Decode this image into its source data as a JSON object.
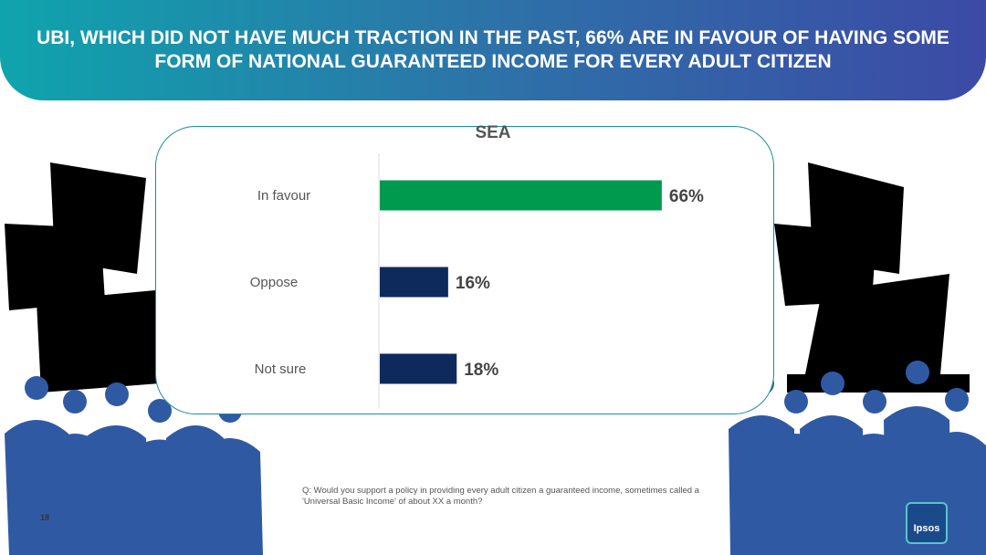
{
  "header": {
    "title": "UBI, WHICH DID NOT HAVE MUCH TRACTION IN THE PAST, 66% ARE IN FAVOUR OF HAVING SOME FORM OF NATIONAL GUARANTEED INCOME FOR EVERY ADULT CITIZEN"
  },
  "chart_data": {
    "type": "bar",
    "orientation": "horizontal",
    "title": "SEA",
    "categories": [
      "In favour",
      "Oppose",
      "Not sure"
    ],
    "values": [
      66,
      16,
      18
    ],
    "value_labels": [
      "66%",
      "16%",
      "18%"
    ],
    "colors": [
      "#009a4e",
      "#0e2a5c",
      "#0e2a5c"
    ],
    "xlim": [
      0,
      100
    ],
    "grid": false,
    "legend": "none"
  },
  "question": "Q: Would you support a policy in providing every adult citizen a guaranteed income, sometimes called a 'Universal Basic Income' of about XX a month?",
  "footer": {
    "page_number": "18"
  },
  "logo": {
    "text": "Ipsos"
  }
}
